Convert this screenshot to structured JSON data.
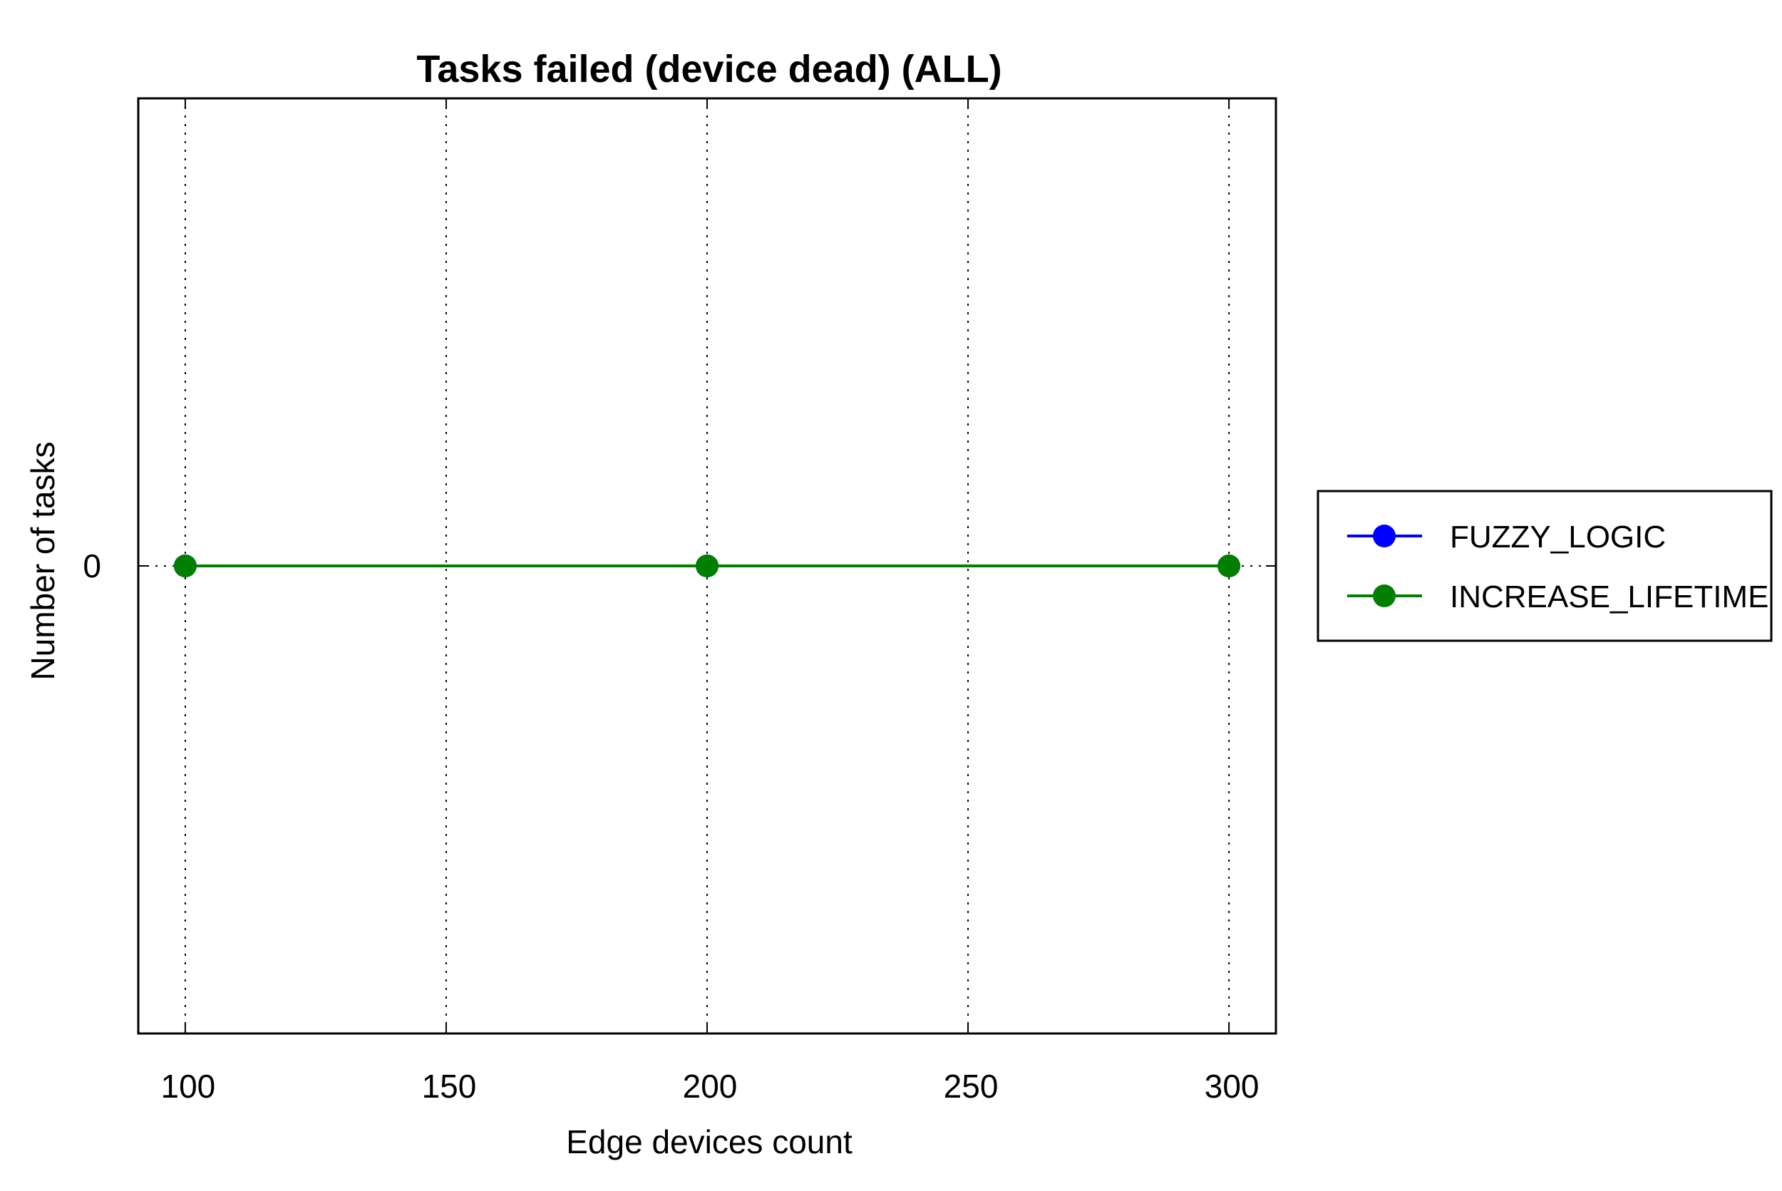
{
  "chart_data": {
    "type": "line",
    "title": "Tasks failed (device dead) (ALL)",
    "xlabel": "Edge devices count",
    "ylabel": "Number of tasks",
    "x": [
      100,
      200,
      300
    ],
    "xlim": [
      91,
      309
    ],
    "ylim": [
      -1,
      1
    ],
    "xticks": [
      100,
      150,
      200,
      250,
      300
    ],
    "xtick_labels": [
      "100",
      "150",
      "200",
      "250",
      "300"
    ],
    "yticks": [
      0
    ],
    "ytick_labels": [
      "0"
    ],
    "grid": "vertical dotted",
    "legend_position": "right, outside plot",
    "series": [
      {
        "name": "FUZZY_LOGIC",
        "values": [
          0,
          0,
          0
        ],
        "color": "#0000ff",
        "marker": "circle"
      },
      {
        "name": "INCREASE_LIFETIME",
        "values": [
          0,
          0,
          0
        ],
        "color": "#007f00",
        "marker": "circle"
      }
    ]
  }
}
